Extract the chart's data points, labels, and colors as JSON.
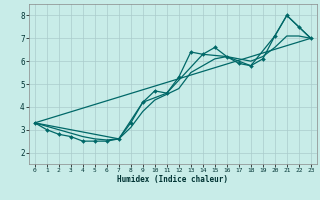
{
  "xlabel": "Humidex (Indice chaleur)",
  "bg_color": "#c8ece8",
  "grid_color": "#aacccc",
  "line_color": "#006868",
  "xlim": [
    -0.5,
    23.5
  ],
  "ylim": [
    1.5,
    8.5
  ],
  "xticks": [
    0,
    1,
    2,
    3,
    4,
    5,
    6,
    7,
    8,
    9,
    10,
    11,
    12,
    13,
    14,
    15,
    16,
    17,
    18,
    19,
    20,
    21,
    22,
    23
  ],
  "yticks": [
    2,
    3,
    4,
    5,
    6,
    7,
    8
  ],
  "series_main_x": [
    0,
    1,
    2,
    3,
    4,
    5,
    6,
    7,
    8,
    9,
    10,
    11,
    12,
    13,
    14,
    15,
    16,
    17,
    18,
    19,
    20,
    21,
    22,
    23
  ],
  "series_main_y": [
    3.3,
    3.0,
    2.8,
    2.7,
    2.5,
    2.5,
    2.5,
    2.6,
    3.3,
    4.2,
    4.7,
    4.6,
    5.3,
    6.4,
    6.3,
    6.6,
    6.2,
    5.9,
    5.8,
    6.1,
    7.1,
    8.0,
    7.5,
    7.0
  ],
  "series_line1_x": [
    0,
    23
  ],
  "series_line1_y": [
    3.3,
    7.0
  ],
  "series_line2_x": [
    0,
    1,
    2,
    3,
    4,
    5,
    6,
    7,
    8,
    9,
    10,
    11,
    12,
    13,
    14,
    15,
    16,
    17,
    18,
    19,
    20,
    21,
    22,
    23
  ],
  "series_line2_y": [
    3.3,
    3.15,
    3.0,
    2.85,
    2.7,
    2.6,
    2.55,
    2.6,
    3.1,
    3.8,
    4.3,
    4.55,
    4.8,
    5.5,
    5.8,
    6.1,
    6.2,
    6.1,
    6.0,
    6.2,
    6.6,
    7.1,
    7.1,
    7.0
  ],
  "series_envelope_x": [
    0,
    7,
    9,
    11,
    14,
    16,
    18,
    20,
    21,
    23
  ],
  "series_envelope_y": [
    3.3,
    2.6,
    4.2,
    4.6,
    6.3,
    6.2,
    5.8,
    7.1,
    8.0,
    7.0
  ]
}
